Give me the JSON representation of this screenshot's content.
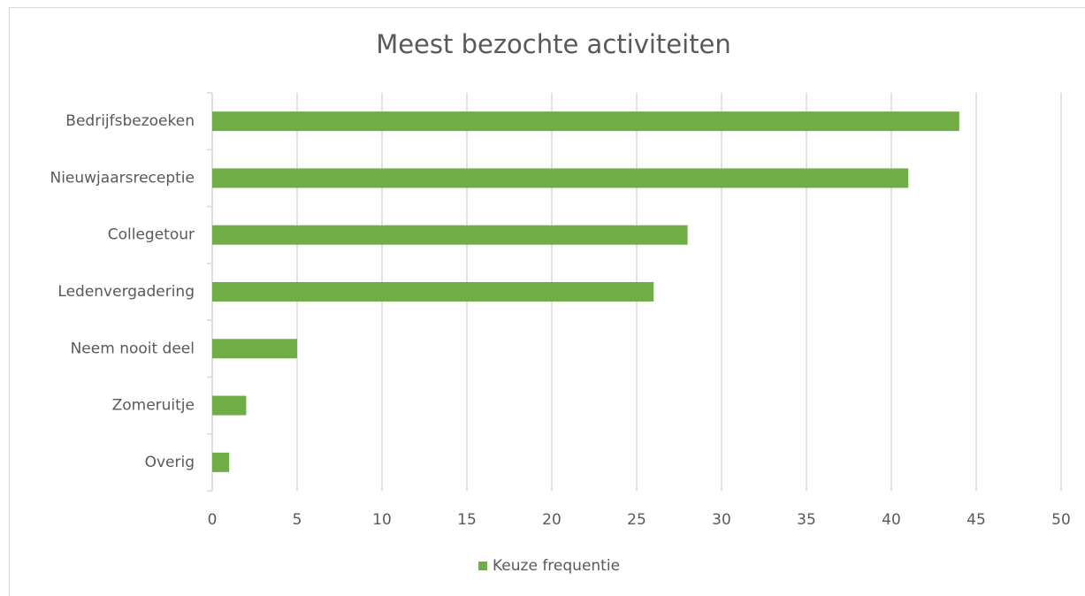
{
  "chart_data": {
    "type": "bar",
    "horizontal": true,
    "title": "Meest bezochte activiteiten",
    "categories": [
      "Bedrijfsbezoeken",
      "Nieuwjaarsreceptie",
      "Collegetour",
      "Ledenvergadering",
      "Neem nooit deel",
      "Zomeruitje",
      "Overig"
    ],
    "series": [
      {
        "name": "Keuze frequentie",
        "color": "#70ad47",
        "values": [
          44,
          41,
          28,
          26,
          5,
          2,
          1
        ]
      }
    ],
    "xlim": [
      0,
      50
    ],
    "xticks": [
      0,
      5,
      10,
      15,
      20,
      25,
      30,
      35,
      40,
      45,
      50
    ],
    "grid": true,
    "legend": "bottom"
  }
}
